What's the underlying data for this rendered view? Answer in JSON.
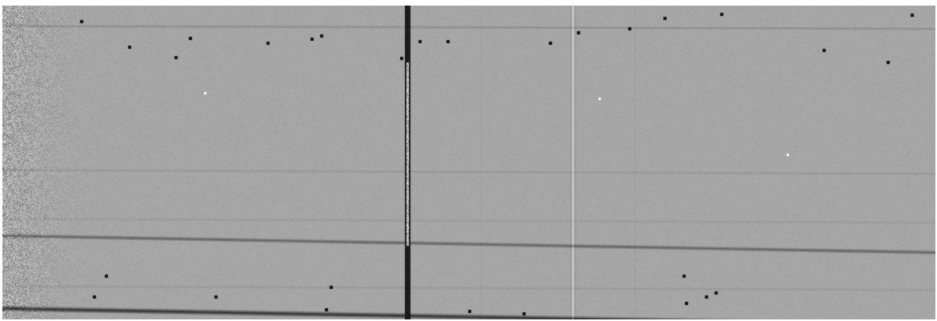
{
  "image": {
    "kind": "grayscale-spectral-frame",
    "background_level": "#a6a6a6",
    "dark_feature_color": "#111111",
    "bright_feature_color": "#ffffff",
    "features": {
      "noisy_left_edge": true,
      "central_dark_column": true,
      "bright_vertical_column": true,
      "faint_horizontal_traces": 6,
      "strong_horizontal_traces": 2,
      "hot_pixels": "scattered"
    }
  }
}
